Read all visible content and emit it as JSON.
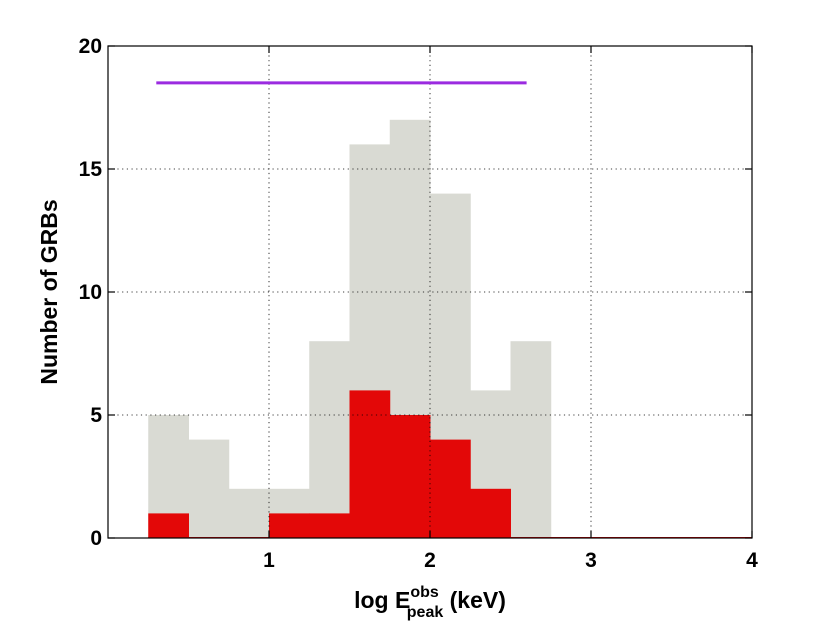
{
  "chart_data": {
    "type": "bar",
    "bin_edges": [
      0.25,
      0.5,
      0.75,
      1.0,
      1.25,
      1.5,
      1.75,
      2.0,
      2.25,
      2.5,
      2.75
    ],
    "series": [
      {
        "values": [
          5,
          4,
          2,
          2,
          8,
          16,
          17,
          14,
          6,
          8
        ],
        "color": "#d9dad3"
      },
      {
        "values": [
          1,
          0,
          0,
          1,
          1,
          6,
          5,
          4,
          2,
          0
        ],
        "color": "#e30808"
      }
    ],
    "range_line": {
      "x": [
        0.3,
        2.6
      ],
      "y": 18.5,
      "color": "#9b2be0"
    },
    "xlim": [
      0,
      4
    ],
    "ylim": [
      0,
      20
    ],
    "x_ticks": [
      1,
      2,
      3,
      4
    ],
    "y_ticks": [
      0,
      5,
      10,
      15,
      20
    ],
    "x_tick_labels": [
      "1",
      "2",
      "3",
      "4"
    ],
    "y_tick_labels": [
      "0",
      "5",
      "10",
      "15",
      "20"
    ],
    "xlabel": {
      "prefix": "log E",
      "sup": "obs",
      "sub": "peak",
      "suffix": " (keV)"
    },
    "ylabel": "Number of GRBs",
    "grid": true,
    "grid_style": "dotted"
  }
}
